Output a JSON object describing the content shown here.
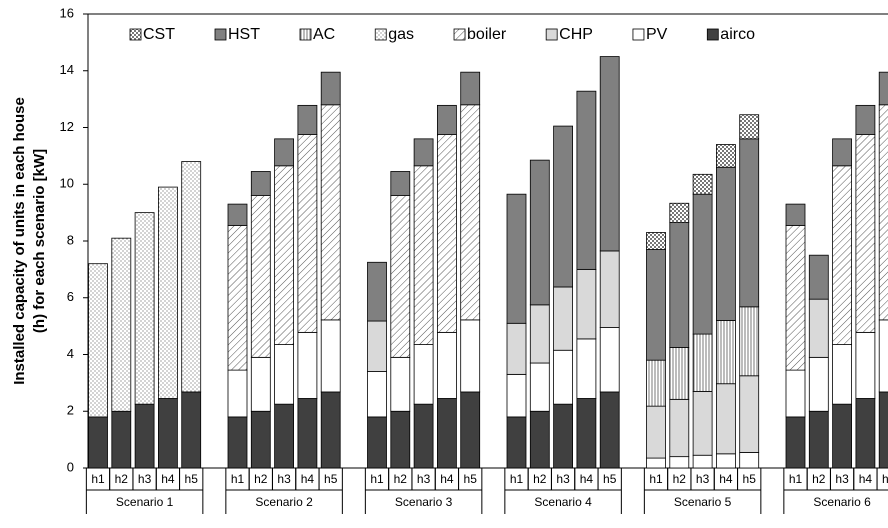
{
  "chart_data": {
    "type": "stacked-bar",
    "ylabel": [
      "Installed capacity of units in each house",
      "(h) for each scenario [kW]"
    ],
    "categories": [
      "h1",
      "h2",
      "h3",
      "h4",
      "h5",
      "h1",
      "h2",
      "h3",
      "h4",
      "h5",
      "h1",
      "h2",
      "h3",
      "h4",
      "h5",
      "h1",
      "h2",
      "h3",
      "h4",
      "h5",
      "h1",
      "h2",
      "h3",
      "h4",
      "h5",
      "h1",
      "h2",
      "h3",
      "h4",
      "h5"
    ],
    "groups": [
      "Scenario 1",
      "Scenario 2",
      "Scenario 3",
      "Scenario 4",
      "Scenario 5",
      "Scenario 6"
    ],
    "legend": "top",
    "ylim": [
      0,
      16
    ],
    "yticks": [
      0,
      2,
      4,
      6,
      8,
      10,
      12,
      14,
      16
    ],
    "series": [
      {
        "name": "CST",
        "color": "#ffffff",
        "pattern": "check",
        "values": [
          0,
          0,
          0,
          0,
          0,
          0,
          0,
          0,
          0,
          0,
          0,
          0,
          0,
          0,
          0,
          0,
          0,
          0,
          0,
          0,
          0.6,
          0.68,
          0.7,
          0.8,
          0.85,
          0,
          0,
          0,
          0,
          0
        ]
      },
      {
        "name": "HST",
        "color": "#808080",
        "pattern": "solid",
        "values": [
          0,
          0,
          0,
          0,
          0,
          0.75,
          0.85,
          0.95,
          1.03,
          1.15,
          2.07,
          0.85,
          0.95,
          1.03,
          1.15,
          4.55,
          5.1,
          5.67,
          6.28,
          6.85,
          3.9,
          4.4,
          4.93,
          5.4,
          5.92,
          0.75,
          1.55,
          0.95,
          1.03,
          1.15
        ]
      },
      {
        "name": "AC",
        "color": "#ffffff",
        "pattern": "vlines",
        "values": [
          0,
          0,
          0,
          0,
          0,
          0,
          0,
          0,
          0,
          0,
          0,
          0,
          0,
          0,
          0,
          0,
          0,
          0,
          0,
          0,
          1.62,
          1.83,
          2.02,
          2.23,
          2.43,
          0,
          0,
          0,
          0,
          0
        ]
      },
      {
        "name": "gas",
        "color": "#ffffff",
        "pattern": "dots",
        "values": [
          5.4,
          6.1,
          6.75,
          7.45,
          8.12,
          0,
          0,
          0,
          0,
          0,
          0,
          0,
          0,
          0,
          0,
          0,
          0,
          0,
          0,
          0,
          0,
          0,
          0,
          0,
          0,
          0,
          0,
          0,
          0,
          0
        ]
      },
      {
        "name": "boiler",
        "color": "#ffffff",
        "pattern": "diag",
        "values": [
          0,
          0,
          0,
          0,
          0,
          5.1,
          5.7,
          6.3,
          6.97,
          7.58,
          0,
          5.7,
          6.3,
          6.97,
          7.58,
          0,
          0,
          0,
          0,
          0,
          0,
          0,
          0,
          0,
          0,
          5.1,
          0,
          6.3,
          6.97,
          7.58
        ]
      },
      {
        "name": "CHP",
        "color": "#d9d9d9",
        "pattern": "solid",
        "values": [
          0,
          0,
          0,
          0,
          0,
          0,
          0,
          0,
          0,
          0,
          1.78,
          0,
          0,
          0,
          0,
          1.8,
          2.05,
          2.23,
          2.45,
          2.7,
          1.83,
          2.02,
          2.25,
          2.47,
          2.7,
          0,
          2.05,
          0,
          0,
          0
        ]
      },
      {
        "name": "PV",
        "color": "#ffffff",
        "pattern": "solid",
        "values": [
          0,
          0,
          0,
          0,
          0,
          1.65,
          1.9,
          2.1,
          2.33,
          2.54,
          1.6,
          1.9,
          2.1,
          2.33,
          2.54,
          1.5,
          1.7,
          1.9,
          2.1,
          2.27,
          0.35,
          0.4,
          0.45,
          0.5,
          0.55,
          1.65,
          1.9,
          2.1,
          2.33,
          2.54
        ]
      },
      {
        "name": "airco",
        "color": "#404040",
        "pattern": "solid",
        "values": [
          1.8,
          2.0,
          2.25,
          2.45,
          2.68,
          1.8,
          2.0,
          2.25,
          2.45,
          2.68,
          1.8,
          2.0,
          2.25,
          2.45,
          2.68,
          1.8,
          2.0,
          2.25,
          2.45,
          2.68,
          0,
          0,
          0,
          0,
          0,
          1.8,
          2.0,
          2.25,
          2.45,
          2.68
        ]
      }
    ]
  }
}
